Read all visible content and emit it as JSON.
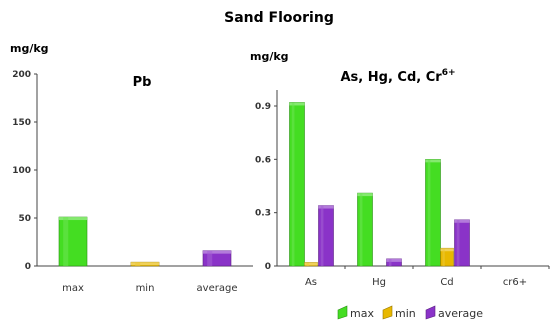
{
  "figure": {
    "title": "Sand Flooring",
    "legend": [
      {
        "label": "max",
        "color": "#44dd22"
      },
      {
        "label": "min",
        "color": "#e8b800"
      },
      {
        "label": "average",
        "color": "#8a33c8"
      }
    ]
  },
  "chart_data": [
    {
      "type": "bar",
      "title": "Pb",
      "ylabel": "mg/kg",
      "categories": [
        "max",
        "min",
        "average"
      ],
      "values": [
        51,
        4,
        16
      ],
      "colors": [
        "#44dd22",
        "#e8b800",
        "#8a33c8"
      ],
      "ylim": [
        0,
        200
      ],
      "yticks": [
        "0",
        "50",
        "100",
        "150",
        "200"
      ],
      "grid": false
    },
    {
      "type": "bar",
      "title": "As, Hg, Cd, Cr",
      "title_superscript": "6+",
      "ylabel": "mg/kg",
      "categories": [
        "As",
        "Hg",
        "Cd",
        "cr6+"
      ],
      "series": [
        {
          "name": "max",
          "color": "#44dd22",
          "values": [
            0.92,
            0.41,
            0.6,
            0
          ]
        },
        {
          "name": "min",
          "color": "#e8b800",
          "values": [
            0.02,
            0,
            0.1,
            0
          ]
        },
        {
          "name": "average",
          "color": "#8a33c8",
          "values": [
            0.34,
            0.04,
            0.26,
            0
          ]
        }
      ],
      "ylim": [
        0,
        1
      ],
      "yticks": [
        "0",
        "0.3",
        "0.6",
        "0.9"
      ],
      "grid": false,
      "legend_position": "bottom"
    }
  ]
}
